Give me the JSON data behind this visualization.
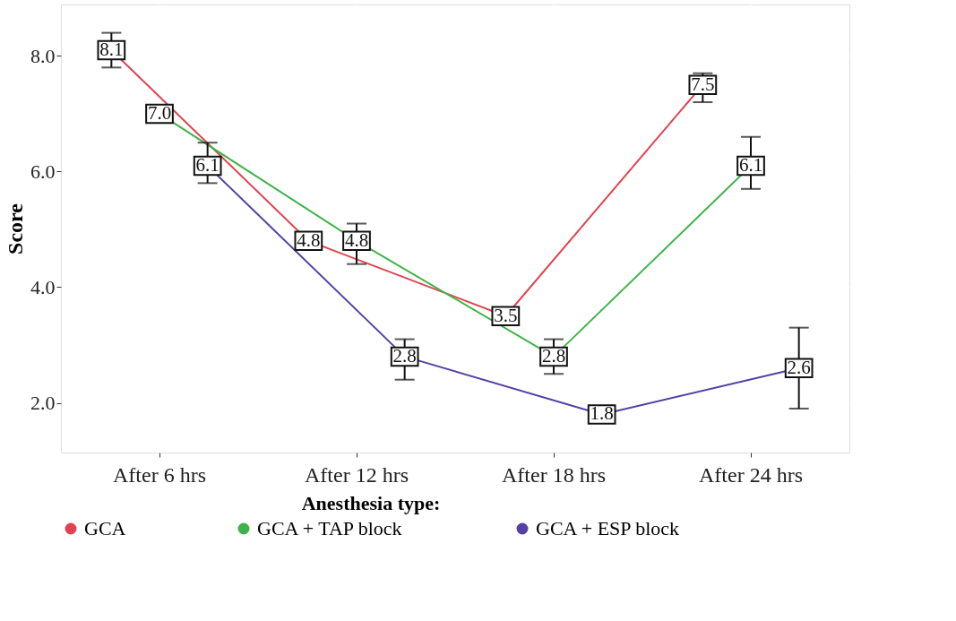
{
  "chart_data": {
    "type": "line",
    "ylabel": "Score",
    "legend_title": "Anesthesia type:",
    "categories": [
      "After 6 hrs",
      "After 12 hrs",
      "After 18 hrs",
      "After 24 hrs"
    ],
    "series": [
      {
        "name": "GCA",
        "color": "#e0434f",
        "values": [
          8.1,
          4.8,
          3.5,
          7.5
        ],
        "value_labels": [
          "8.1",
          "4.8",
          "3.5",
          "7.5"
        ],
        "errors": [
          [
            7.8,
            8.4
          ],
          null,
          null,
          [
            7.2,
            7.7
          ]
        ]
      },
      {
        "name": "GCA + TAP block",
        "color": "#3fb34a",
        "values": [
          7.0,
          4.8,
          2.8,
          6.1
        ],
        "value_labels": [
          "7.0",
          "4.8",
          "2.8",
          "6.1"
        ],
        "errors": [
          null,
          [
            4.4,
            5.1
          ],
          [
            2.5,
            3.1
          ],
          [
            5.7,
            6.6
          ]
        ]
      },
      {
        "name": "GCA + ESP block",
        "color": "#5540a6",
        "values": [
          6.1,
          2.8,
          1.8,
          2.6
        ],
        "value_labels": [
          "6.1",
          "2.8",
          "1.8",
          "2.6"
        ],
        "errors": [
          [
            5.8,
            6.5
          ],
          [
            2.4,
            3.1
          ],
          null,
          [
            1.9,
            3.3
          ]
        ]
      }
    ],
    "ylim": [
      1.14,
      8.89
    ],
    "yticks": [
      {
        "value": 2,
        "label": "2.0"
      },
      {
        "value": 4,
        "label": "4.0"
      },
      {
        "value": 6,
        "label": "6.0"
      },
      {
        "value": 8,
        "label": "8.0"
      }
    ],
    "grid": true,
    "legend": "bottom",
    "marker": "circle",
    "line_style": "solid"
  }
}
